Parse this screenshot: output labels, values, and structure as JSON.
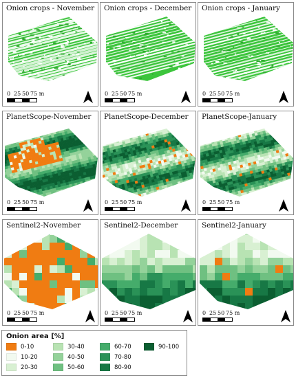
{
  "panels": [
    {
      "title": "Onion crops - November",
      "type": "classified",
      "variant": "nov"
    },
    {
      "title": "Onion crops - December",
      "type": "classified",
      "variant": "dec"
    },
    {
      "title": "Onion crops - January",
      "type": "classified",
      "variant": "jan"
    },
    {
      "title": "PlanetScope-November",
      "type": "planet",
      "variant": "nov"
    },
    {
      "title": "PlanetScope-December",
      "type": "planet",
      "variant": "dec"
    },
    {
      "title": "PlanetScope-January",
      "type": "planet",
      "variant": "jan"
    },
    {
      "title": "Sentinel2-November",
      "type": "sentinel",
      "variant": "nov"
    },
    {
      "title": "Sentinel2-December",
      "type": "sentinel",
      "variant": "dec"
    },
    {
      "title": "Sentinel2-January",
      "type": "sentinel",
      "variant": "jan"
    }
  ],
  "scalebar": {
    "ticks": [
      "0",
      "25",
      "50",
      "75 m"
    ]
  },
  "north_icon": "north-arrow-icon",
  "legend": {
    "title": "Onion area [%]",
    "classes": [
      {
        "label": "0-10",
        "color": "#f07c12"
      },
      {
        "label": "10-20",
        "color": "#f2faf0"
      },
      {
        "label": "20-30",
        "color": "#d8f0d2"
      },
      {
        "label": "30-40",
        "color": "#b8e3b3"
      },
      {
        "label": "40-50",
        "color": "#94d29a"
      },
      {
        "label": "50-60",
        "color": "#6fc081"
      },
      {
        "label": "60-70",
        "color": "#45ac6b"
      },
      {
        "label": "70-80",
        "color": "#2a9257"
      },
      {
        "label": "80-90",
        "color": "#177845"
      },
      {
        "label": "90-100",
        "color": "#0b5e31"
      }
    ]
  }
}
